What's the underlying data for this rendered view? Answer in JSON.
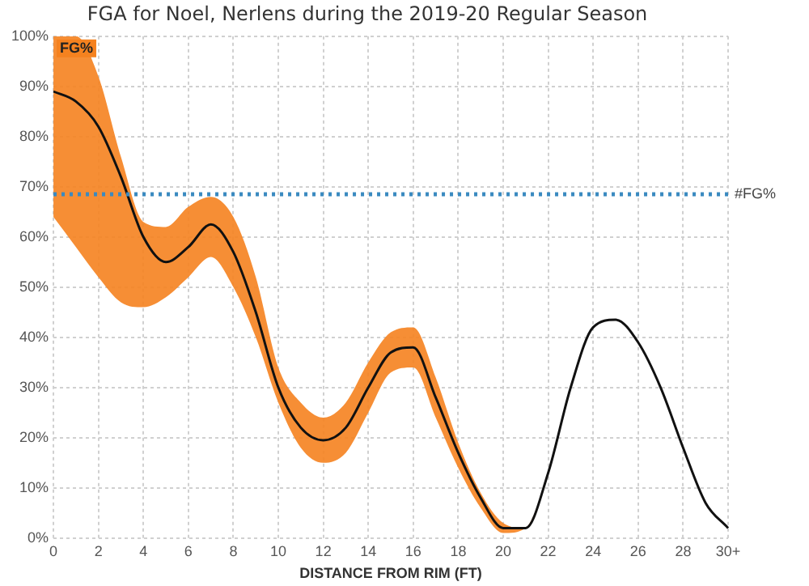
{
  "chart_data": {
    "type": "line",
    "title": "FGA for Noel, Nerlens during the 2019-20 Regular Season",
    "xlabel": "DISTANCE FROM RIM (FT)",
    "x": [
      0,
      1,
      2,
      3,
      4,
      5,
      6,
      7,
      8,
      9,
      10,
      11,
      12,
      13,
      14,
      15,
      16,
      17,
      18,
      19,
      20,
      21,
      22,
      23,
      24,
      25,
      26,
      27,
      28,
      29,
      30
    ],
    "series": [
      {
        "name": "FG%",
        "color": "#111111",
        "values": [
          89,
          87,
          82,
          72,
          60,
          55,
          58,
          62.5,
          57,
          45,
          30,
          22,
          19.5,
          22,
          30,
          37,
          38,
          28,
          17,
          8,
          2,
          2,
          13,
          30,
          42,
          43.5,
          39,
          30,
          18,
          7,
          2
        ],
        "lower": [
          64,
          58,
          52,
          47,
          46,
          48,
          52,
          56,
          50,
          40,
          27,
          18,
          15,
          17,
          25,
          33,
          34,
          24,
          14,
          6,
          1,
          2,
          13,
          30,
          42,
          43.5,
          39,
          30,
          18,
          7,
          2
        ],
        "upper": [
          100,
          100,
          92,
          76,
          63,
          62,
          66,
          68,
          64,
          52,
          34,
          27,
          24,
          27,
          35,
          41,
          42,
          32,
          19,
          9,
          3,
          2,
          13,
          30,
          42,
          43.5,
          39,
          30,
          18,
          7,
          2
        ]
      }
    ],
    "xlim": [
      0,
      30
    ],
    "xticks": [
      0,
      2,
      4,
      6,
      8,
      10,
      12,
      14,
      16,
      18,
      20,
      22,
      24,
      26,
      28,
      {
        "value": 30,
        "label": "30+"
      }
    ],
    "ylim": [
      0,
      100
    ],
    "yticks": [
      {
        "value": 0,
        "label": "0%"
      },
      {
        "value": 10,
        "label": "10%"
      },
      {
        "value": 20,
        "label": "20%"
      },
      {
        "value": 30,
        "label": "30%"
      },
      {
        "value": 40,
        "label": "40%"
      },
      {
        "value": 50,
        "label": "50%"
      },
      {
        "value": 60,
        "label": "60%"
      },
      {
        "value": 70,
        "label": "70%"
      },
      {
        "value": 80,
        "label": "80%"
      },
      {
        "value": 90,
        "label": "90%"
      },
      {
        "value": 100,
        "label": "100%"
      }
    ],
    "ref_lines": [
      {
        "axis": "y",
        "value": 68.5,
        "label": "#FG%",
        "color": "#3a8ac0",
        "line_style": "dotted"
      }
    ],
    "grid": true,
    "legend": false,
    "marker": "none",
    "line_style": "solid"
  }
}
